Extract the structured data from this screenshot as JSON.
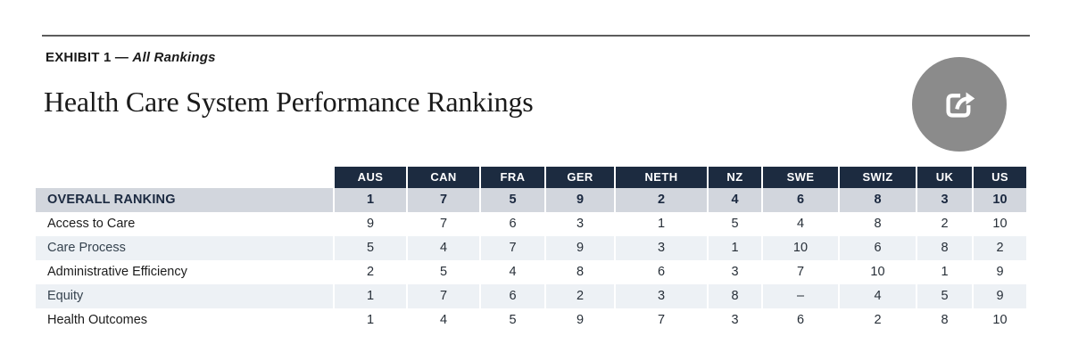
{
  "exhibit": {
    "prefix": "EXHIBIT 1 — ",
    "name": "All Rankings"
  },
  "share": {
    "icon": "share-export-icon"
  },
  "colors": {
    "header_navy": "#1c2b40",
    "overall_row_bg": "#d2d6dd",
    "shaded_row_bg": "#edf1f5",
    "share_circle_gray": "#8b8b8b",
    "rule_gray": "#5c5c5c"
  },
  "chart_data": {
    "type": "table",
    "title": "Health Care System Performance Rankings",
    "subtitle": "EXHIBIT 1 — All Rankings",
    "columns": [
      "AUS",
      "CAN",
      "FRA",
      "GER",
      "NETH",
      "NZ",
      "SWE",
      "SWIZ",
      "UK",
      "US"
    ],
    "rows": [
      {
        "label": "OVERALL RANKING",
        "emphasis": true,
        "values": [
          "1",
          "7",
          "5",
          "9",
          "2",
          "4",
          "6",
          "8",
          "3",
          "10"
        ]
      },
      {
        "label": "Access to Care",
        "values": [
          "9",
          "7",
          "6",
          "3",
          "1",
          "5",
          "4",
          "8",
          "2",
          "10"
        ]
      },
      {
        "label": "Care Process",
        "values": [
          "5",
          "4",
          "7",
          "9",
          "3",
          "1",
          "10",
          "6",
          "8",
          "2"
        ]
      },
      {
        "label": "Administrative Efficiency",
        "values": [
          "2",
          "5",
          "4",
          "8",
          "6",
          "3",
          "7",
          "10",
          "1",
          "9"
        ]
      },
      {
        "label": "Equity",
        "values": [
          "1",
          "7",
          "6",
          "2",
          "3",
          "8",
          "–",
          "4",
          "5",
          "9"
        ]
      },
      {
        "label": "Health Outcomes",
        "values": [
          "1",
          "4",
          "5",
          "9",
          "7",
          "3",
          "6",
          "2",
          "8",
          "10"
        ]
      }
    ]
  }
}
